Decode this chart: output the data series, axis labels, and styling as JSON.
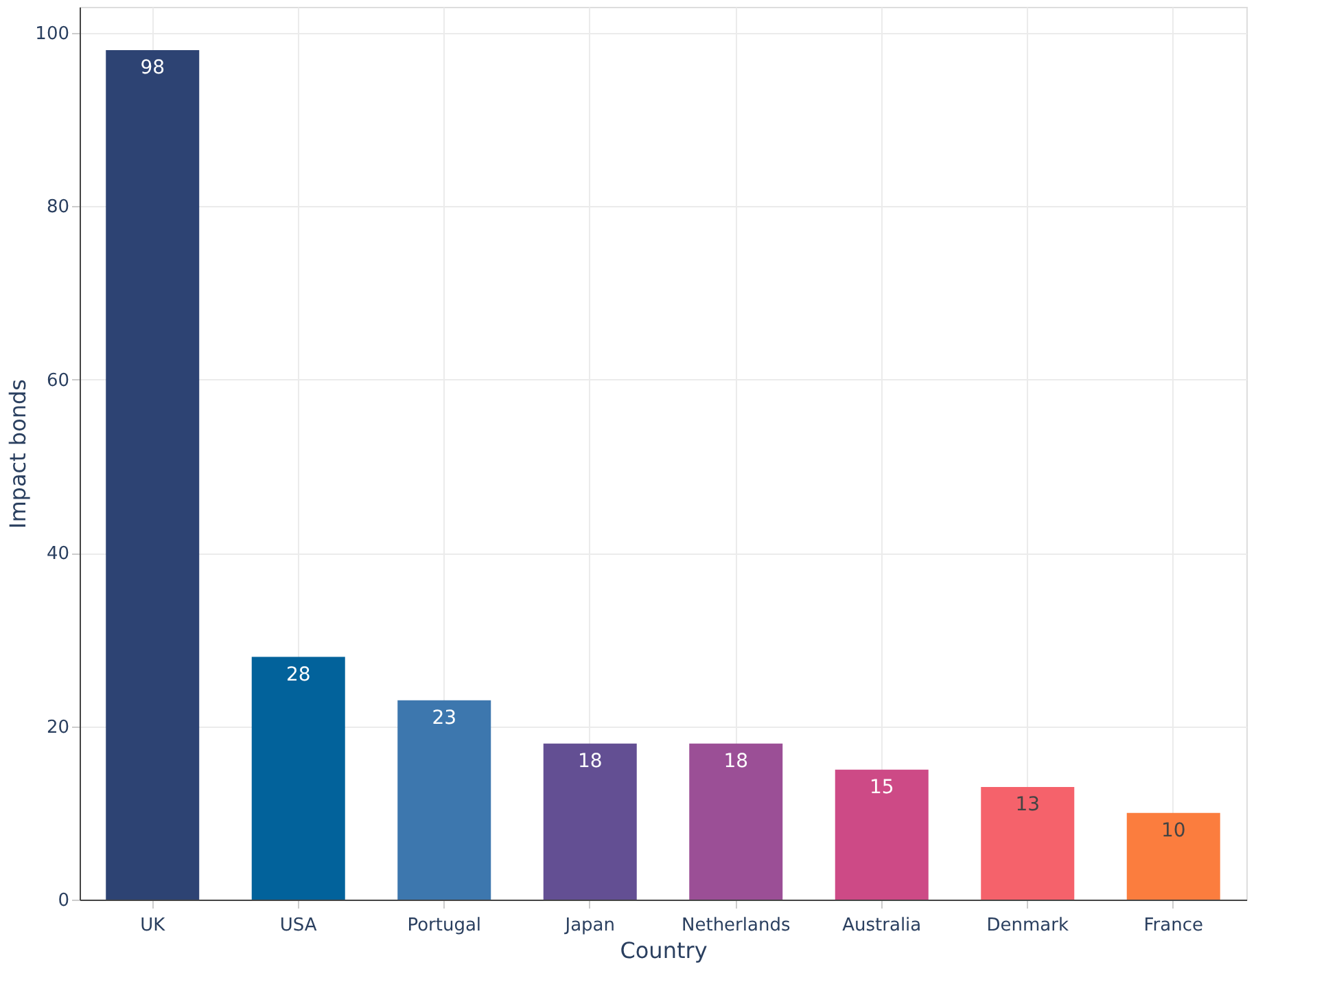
{
  "chart_data": {
    "type": "bar",
    "xlabel": "Country",
    "ylabel": "Impact bonds",
    "categories": [
      "UK",
      "USA",
      "Portugal",
      "Japan",
      "Netherlands",
      "Australia",
      "Denmark",
      "France"
    ],
    "values": [
      98,
      28,
      23,
      18,
      18,
      15,
      13,
      10
    ],
    "colors": [
      "#2d4373",
      "#02629b",
      "#3d77ae",
      "#634f93",
      "#9b4f96",
      "#cd4a86",
      "#f5626b",
      "#fb7d3e"
    ],
    "ylim": [
      0,
      103
    ],
    "yticks": [
      0,
      20,
      40,
      60,
      80,
      100
    ],
    "grid": true,
    "data_labels": true
  }
}
